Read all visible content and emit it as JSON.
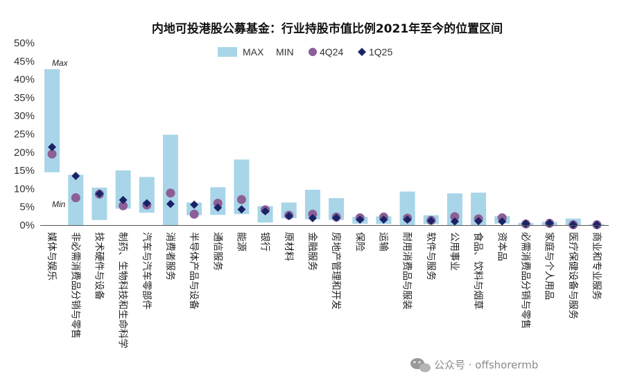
{
  "chart_data": {
    "type": "bar",
    "title": "内地可投港股公募基金：行业持股市值比例2021年至今的位置区间",
    "ylim": [
      0,
      50
    ],
    "yticks": [
      "0%",
      "5%",
      "10%",
      "15%",
      "20%",
      "25%",
      "30%",
      "35%",
      "40%",
      "45%",
      "50%"
    ],
    "legend_position": "top",
    "annotations": {
      "max": "Max",
      "min": "Min"
    },
    "categories": [
      "媒体与娱乐",
      "非必需消费品分销与零售",
      "技术硬件与设备",
      "制药、生物科技和生命科学",
      "汽车与汽车零部件",
      "消费者服务",
      "半导体产品与设备",
      "通信服务",
      "能源",
      "银行",
      "原材料",
      "金融服务",
      "房地产管理和开发",
      "保险",
      "运输",
      "耐用消费品与服装",
      "软件与服务",
      "公用事业",
      "食品、饮料与烟草",
      "资本品",
      "必需消费品分销与零售",
      "家庭与个人用品",
      "医疗保健设备与服务",
      "商业和专业服务"
    ],
    "series": [
      {
        "name": "MAX",
        "values": [
          42.8,
          13.8,
          10.3,
          15.0,
          13.2,
          24.8,
          6.2,
          10.4,
          18.0,
          5.2,
          6.2,
          9.7,
          7.4,
          2.3,
          2.4,
          9.2,
          2.7,
          8.7,
          8.9,
          2.5,
          0.6,
          0.9,
          1.8,
          0.2
        ]
      },
      {
        "name": "MIN",
        "values": [
          14.5,
          0.0,
          1.4,
          4.5,
          3.4,
          0.0,
          2.7,
          2.8,
          3.0,
          0.7,
          1.9,
          1.6,
          1.4,
          0.4,
          0.3,
          0.0,
          0.3,
          0.0,
          0.0,
          0.4,
          0.0,
          0.0,
          0.0,
          0.0
        ]
      },
      {
        "name": "4Q24",
        "values": [
          19.5,
          7.5,
          8.5,
          5.3,
          5.5,
          8.8,
          3.0,
          6.0,
          7.0,
          4.2,
          2.7,
          3.0,
          2.2,
          2.0,
          2.2,
          1.9,
          1.3,
          2.3,
          1.7,
          2.0,
          0.3,
          0.5,
          0.1,
          0.1
        ]
      },
      {
        "name": "1Q25",
        "values": [
          21.4,
          13.5,
          8.6,
          6.9,
          6.0,
          5.8,
          5.6,
          4.8,
          4.3,
          3.8,
          2.5,
          1.9,
          2.0,
          1.5,
          1.5,
          1.5,
          1.2,
          1.0,
          1.1,
          1.0,
          0.4,
          0.5,
          0.1,
          0.1
        ]
      }
    ],
    "colors": {
      "range": "#a8d5e8",
      "q4": "#8c5f96",
      "q1": "#1b2367",
      "axis": "#555555"
    }
  },
  "watermark": {
    "icon": "wechat-icon",
    "text": "公众号 · offshorermb"
  }
}
